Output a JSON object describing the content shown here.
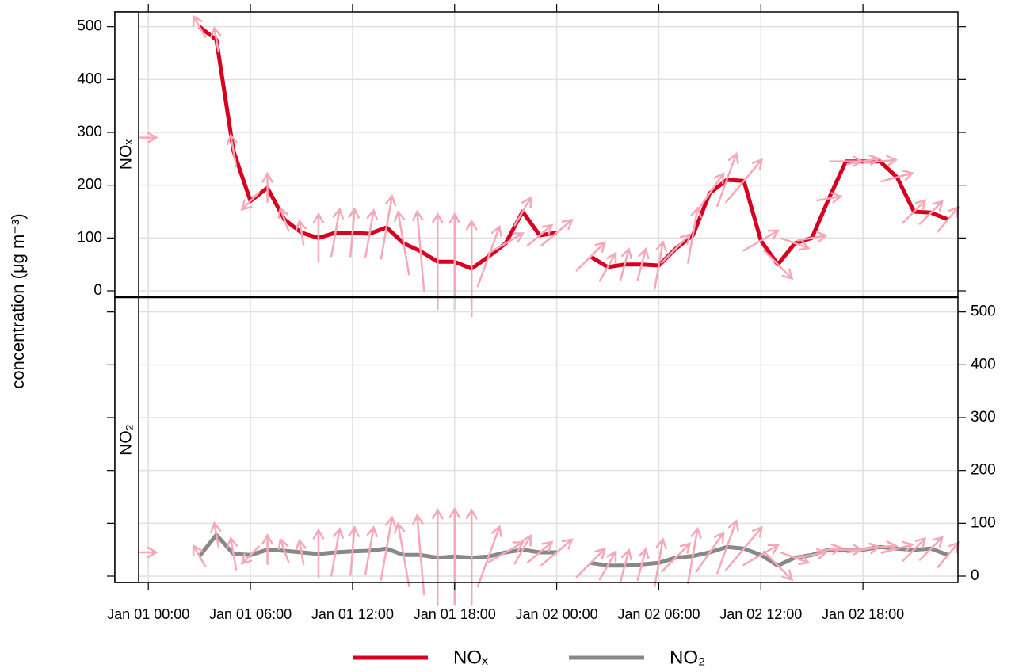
{
  "chart_data": {
    "type": "line",
    "ylabel": "concentration (μg m⁻³)",
    "x": [
      "Jan 01 00:00",
      "Jan 01 01:00",
      "Jan 01 02:00",
      "Jan 01 03:00",
      "Jan 01 04:00",
      "Jan 01 05:00",
      "Jan 01 06:00",
      "Jan 01 07:00",
      "Jan 01 08:00",
      "Jan 01 09:00",
      "Jan 01 10:00",
      "Jan 01 11:00",
      "Jan 01 12:00",
      "Jan 01 13:00",
      "Jan 01 14:00",
      "Jan 01 15:00",
      "Jan 01 16:00",
      "Jan 01 17:00",
      "Jan 01 18:00",
      "Jan 01 19:00",
      "Jan 01 20:00",
      "Jan 01 21:00",
      "Jan 01 22:00",
      "Jan 01 23:00",
      "Jan 02 00:00",
      "Jan 02 01:00",
      "Jan 02 02:00",
      "Jan 02 03:00",
      "Jan 02 04:00",
      "Jan 02 05:00",
      "Jan 02 06:00",
      "Jan 02 07:00",
      "Jan 02 08:00",
      "Jan 02 09:00",
      "Jan 02 10:00",
      "Jan 02 11:00",
      "Jan 02 12:00",
      "Jan 02 13:00",
      "Jan 02 14:00",
      "Jan 02 15:00",
      "Jan 02 16:00",
      "Jan 02 17:00",
      "Jan 02 18:00",
      "Jan 02 19:00",
      "Jan 02 20:00",
      "Jan 02 21:00",
      "Jan 02 22:00",
      "Jan 02 23:00"
    ],
    "series": [
      {
        "name": "NOₓ",
        "color": "#d7001f",
        "values": [
          290,
          null,
          null,
          500,
          475,
          265,
          170,
          195,
          135,
          110,
          100,
          110,
          110,
          108,
          120,
          90,
          75,
          55,
          55,
          42,
          65,
          90,
          150,
          105,
          110,
          null,
          65,
          45,
          50,
          50,
          48,
          80,
          105,
          185,
          210,
          208,
          95,
          50,
          90,
          100,
          175,
          245,
          245,
          245,
          215,
          150,
          148,
          135
        ]
      },
      {
        "name": "NO₂",
        "color": "#888888",
        "values": [
          45,
          null,
          null,
          38,
          78,
          42,
          40,
          50,
          48,
          45,
          42,
          45,
          47,
          48,
          52,
          40,
          40,
          35,
          37,
          35,
          37,
          45,
          50,
          45,
          45,
          null,
          25,
          20,
          20,
          22,
          25,
          35,
          38,
          45,
          55,
          52,
          40,
          20,
          35,
          40,
          50,
          50,
          50,
          55,
          52,
          50,
          52,
          40
        ]
      }
    ],
    "wd": [
      270,
      null,
      null,
      150,
      170,
      170,
      45,
      180,
      160,
      170,
      180,
      190,
      185,
      190,
      190,
      170,
      175,
      180,
      180,
      180,
      200,
      240,
      210,
      230,
      230,
      null,
      225,
      210,
      195,
      195,
      190,
      225,
      190,
      215,
      200,
      220,
      240,
      315,
      290,
      260,
      260,
      270,
      260,
      265,
      255,
      225,
      225,
      220
    ],
    "ws": [
      1.0,
      null,
      null,
      1.5,
      1.5,
      2,
      1.5,
      1.8,
      1.5,
      1.5,
      3,
      3,
      3,
      3,
      4,
      4,
      5,
      6,
      6,
      6,
      4,
      2.5,
      2,
      2,
      2.5,
      null,
      2.5,
      2,
      2,
      2,
      3,
      2.5,
      3.5,
      3,
      3.5,
      3.5,
      2.5,
      2.5,
      1.8,
      1.8,
      1.5,
      2,
      2,
      2,
      2,
      2,
      2,
      2
    ],
    "arrow_color": "#f7a8b8",
    "xlim": [
      "Dec 31 22:02",
      "Jan 02 23:35"
    ],
    "xticks": [
      "Jan 01 00:00",
      "Jan 01 06:00",
      "Jan 01 12:00",
      "Jan 01 18:00",
      "Jan 02 00:00",
      "Jan 02 06:00",
      "Jan 02 12:00",
      "Jan 02 18:00"
    ],
    "ylim": [
      -12,
      528
    ],
    "yticks": [
      0,
      100,
      200,
      300,
      400,
      500
    ],
    "grid": true,
    "legend": "bottom"
  }
}
